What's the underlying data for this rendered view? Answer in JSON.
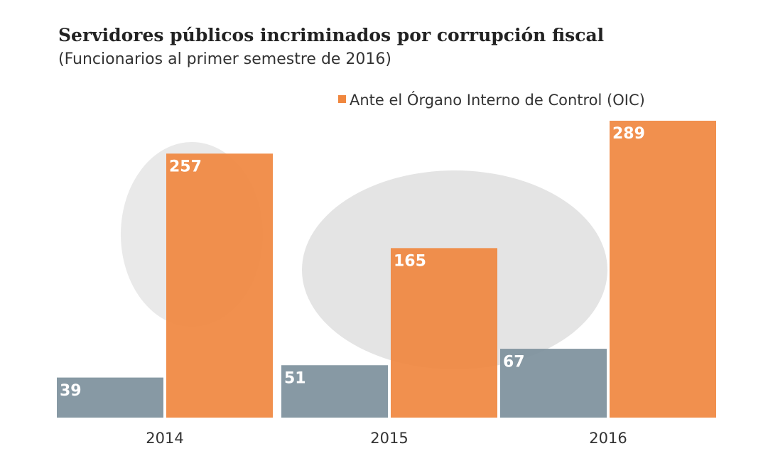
{
  "chart_data": {
    "type": "bar",
    "title": "Servidores públicos incriminados por corrupción fiscal",
    "subtitle": "(Funcionarios al primer semestre de 2016)",
    "categories": [
      "2014",
      "2015",
      "2016"
    ],
    "series": [
      {
        "color": "#7d909c",
        "values": [
          39,
          51,
          67
        ]
      },
      {
        "name": "Ante el Órgano Interno de Control (OIC)",
        "color": "#f0873f",
        "values": [
          257,
          165,
          289
        ]
      }
    ]
  }
}
